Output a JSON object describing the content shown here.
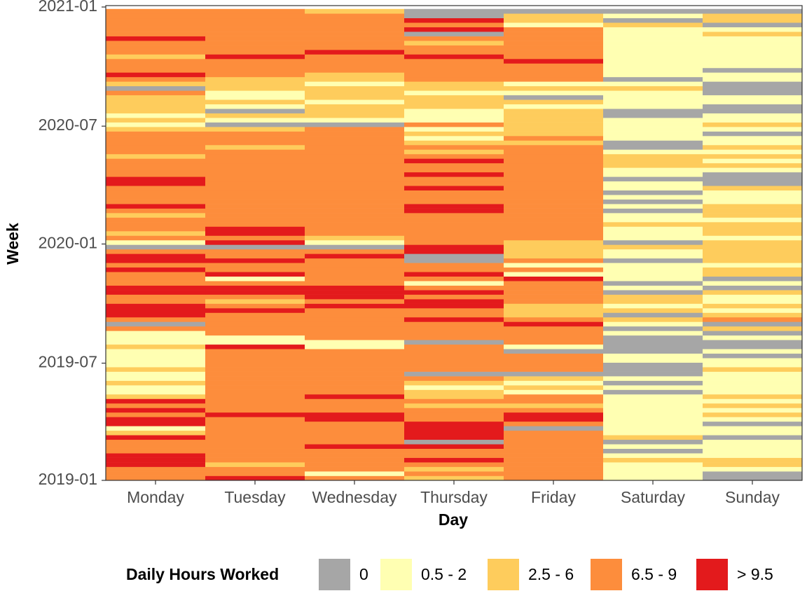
{
  "chart_data": {
    "type": "heatmap",
    "x_label": "Day",
    "y_label": "Week",
    "legend_title": "Daily Hours Worked",
    "levels": [
      {
        "label": "0",
        "color": "#a6a6a6"
      },
      {
        "label": "0.5 - 2",
        "color": "#ffffb2"
      },
      {
        "label": "2.5 - 6",
        "color": "#fecc5c"
      },
      {
        "label": "6.5 - 9",
        "color": "#fd8d3c"
      },
      {
        "label": "> 9.5",
        "color": "#e31a1c"
      }
    ],
    "categories": [
      "Monday",
      "Tuesday",
      "Wednesday",
      "Thursday",
      "Friday",
      "Saturday",
      "Sunday"
    ],
    "ylim": [
      0,
      731
    ],
    "yticks": [
      {
        "value": 0,
        "label": "2019-01"
      },
      {
        "value": 181,
        "label": "2019-07"
      },
      {
        "value": 365,
        "label": "2020-01"
      },
      {
        "value": 547,
        "label": "2020-07"
      },
      {
        "value": 731,
        "label": "2021-01"
      }
    ],
    "values": [
      [
        3,
        3,
        3,
        4,
        4,
        4,
        3,
        3,
        3,
        4,
        2,
        1,
        4,
        4,
        3,
        4,
        3,
        4,
        2,
        1,
        1,
        2,
        1,
        1,
        2,
        1,
        1,
        1,
        1,
        2,
        1,
        1,
        1,
        3,
        0,
        3,
        4,
        4,
        4,
        3,
        3,
        4,
        4,
        3,
        3,
        3,
        4,
        3,
        4,
        4,
        3,
        0,
        1,
        3,
        2,
        3,
        3,
        3,
        2,
        3,
        4,
        3,
        3,
        3,
        3,
        4,
        4,
        3,
        3,
        3,
        3,
        2,
        3,
        3,
        3,
        3,
        3,
        2,
        1,
        2,
        1,
        2,
        2,
        2,
        2,
        3,
        0,
        2,
        3,
        4,
        3,
        3,
        3,
        2,
        3,
        3,
        3,
        4,
        3,
        3,
        3,
        3,
        3,
        3
      ],
      [
        4,
        3,
        3,
        2,
        3,
        3,
        3,
        3,
        3,
        3,
        3,
        3,
        3,
        3,
        4,
        3,
        3,
        3,
        3,
        3,
        3,
        3,
        3,
        3,
        3,
        3,
        3,
        3,
        3,
        4,
        1,
        1,
        3,
        3,
        3,
        3,
        3,
        4,
        3,
        2,
        3,
        4,
        4,
        3,
        1,
        4,
        3,
        3,
        4,
        3,
        3,
        0,
        4,
        3,
        4,
        4,
        3,
        3,
        3,
        3,
        3,
        3,
        3,
        3,
        3,
        3,
        3,
        3,
        3,
        3,
        3,
        3,
        3,
        2,
        3,
        3,
        3,
        2,
        0,
        1,
        2,
        0,
        1,
        2,
        1,
        1,
        2,
        2,
        2,
        3,
        3,
        3,
        3,
        4,
        3,
        3,
        3,
        3,
        3,
        3,
        3,
        3,
        3,
        3
      ],
      [
        3,
        1,
        3,
        3,
        3,
        3,
        3,
        4,
        3,
        3,
        3,
        3,
        3,
        4,
        4,
        3,
        3,
        3,
        4,
        3,
        3,
        3,
        3,
        3,
        3,
        3,
        3,
        3,
        3,
        1,
        1,
        3,
        3,
        3,
        3,
        3,
        3,
        3,
        4,
        3,
        4,
        4,
        4,
        3,
        3,
        3,
        3,
        3,
        3,
        4,
        3,
        0,
        1,
        2,
        3,
        3,
        3,
        3,
        3,
        3,
        3,
        3,
        3,
        3,
        3,
        3,
        3,
        3,
        3,
        3,
        3,
        3,
        3,
        3,
        3,
        3,
        3,
        3,
        0,
        1,
        2,
        2,
        2,
        1,
        2,
        2,
        2,
        1,
        2,
        2,
        3,
        3,
        3,
        3,
        4,
        3,
        3,
        3,
        3,
        3,
        3,
        3,
        3,
        2
      ],
      [
        2,
        3,
        2,
        3,
        4,
        3,
        3,
        4,
        0,
        4,
        4,
        4,
        4,
        3,
        3,
        3,
        2,
        3,
        2,
        2,
        1,
        2,
        3,
        0,
        3,
        3,
        3,
        3,
        3,
        3,
        0,
        3,
        3,
        3,
        3,
        4,
        3,
        3,
        4,
        4,
        3,
        4,
        3,
        1,
        3,
        4,
        3,
        3,
        0,
        0,
        4,
        4,
        3,
        3,
        3,
        3,
        3,
        3,
        3,
        4,
        4,
        3,
        3,
        3,
        4,
        3,
        3,
        4,
        3,
        3,
        4,
        3,
        2,
        3,
        2,
        1,
        2,
        1,
        3,
        1,
        1,
        1,
        2,
        2,
        2,
        1,
        2,
        2,
        3,
        3,
        3,
        3,
        3,
        4,
        3,
        3,
        2,
        3,
        0,
        4,
        3,
        4,
        0,
        0
      ],
      [
        3,
        3,
        3,
        3,
        3,
        3,
        3,
        3,
        3,
        3,
        3,
        0,
        3,
        4,
        4,
        3,
        2,
        3,
        3,
        1,
        2,
        1,
        2,
        0,
        3,
        3,
        3,
        3,
        0,
        1,
        3,
        3,
        3,
        3,
        4,
        3,
        2,
        2,
        2,
        3,
        3,
        3,
        3,
        3,
        4,
        1,
        3,
        1,
        3,
        2,
        2,
        2,
        2,
        3,
        3,
        3,
        3,
        3,
        3,
        3,
        3,
        3,
        3,
        3,
        3,
        3,
        3,
        3,
        3,
        3,
        3,
        3,
        3,
        3,
        2,
        3,
        2,
        2,
        2,
        2,
        2,
        2,
        1,
        2,
        0,
        1,
        2,
        1,
        3,
        3,
        3,
        3,
        4,
        3,
        3,
        3,
        3,
        3,
        3,
        3,
        1,
        2,
        2,
        0
      ],
      [
        1,
        1,
        1,
        1,
        2,
        1,
        0,
        1,
        0,
        2,
        1,
        1,
        1,
        1,
        1,
        1,
        1,
        1,
        1,
        0,
        1,
        0,
        1,
        0,
        0,
        0,
        1,
        1,
        0,
        0,
        0,
        0,
        1,
        0,
        1,
        2,
        0,
        2,
        1,
        2,
        2,
        0,
        1,
        0,
        1,
        1,
        1,
        1,
        0,
        1,
        1,
        2,
        0,
        1,
        1,
        1,
        2,
        1,
        1,
        0,
        1,
        0,
        1,
        0,
        1,
        1,
        0,
        1,
        1,
        2,
        2,
        2,
        1,
        0,
        0,
        1,
        1,
        1,
        1,
        1,
        0,
        0,
        1,
        1,
        1,
        1,
        2,
        1,
        0,
        1,
        1,
        1,
        1,
        1,
        1,
        1,
        1,
        1,
        1,
        1,
        2,
        0,
        1,
        0
      ],
      [
        0,
        0,
        1,
        2,
        2,
        1,
        1,
        1,
        1,
        0,
        1,
        1,
        0,
        1,
        2,
        1,
        2,
        1,
        2,
        1,
        1,
        1,
        1,
        1,
        2,
        1,
        1,
        0,
        1,
        0,
        0,
        1,
        0,
        2,
        0,
        3,
        2,
        1,
        2,
        1,
        1,
        2,
        0,
        1,
        0,
        2,
        2,
        1,
        2,
        2,
        2,
        2,
        2,
        1,
        2,
        2,
        2,
        1,
        2,
        2,
        2,
        1,
        1,
        1,
        2,
        0,
        0,
        0,
        1,
        2,
        1,
        2,
        1,
        2,
        1,
        1,
        0,
        1,
        2,
        1,
        1,
        0,
        0,
        1,
        1,
        0,
        0,
        0,
        1,
        1,
        0,
        1,
        1,
        1,
        1,
        1,
        1,
        1,
        2,
        1,
        0,
        2,
        2,
        0
      ]
    ]
  }
}
